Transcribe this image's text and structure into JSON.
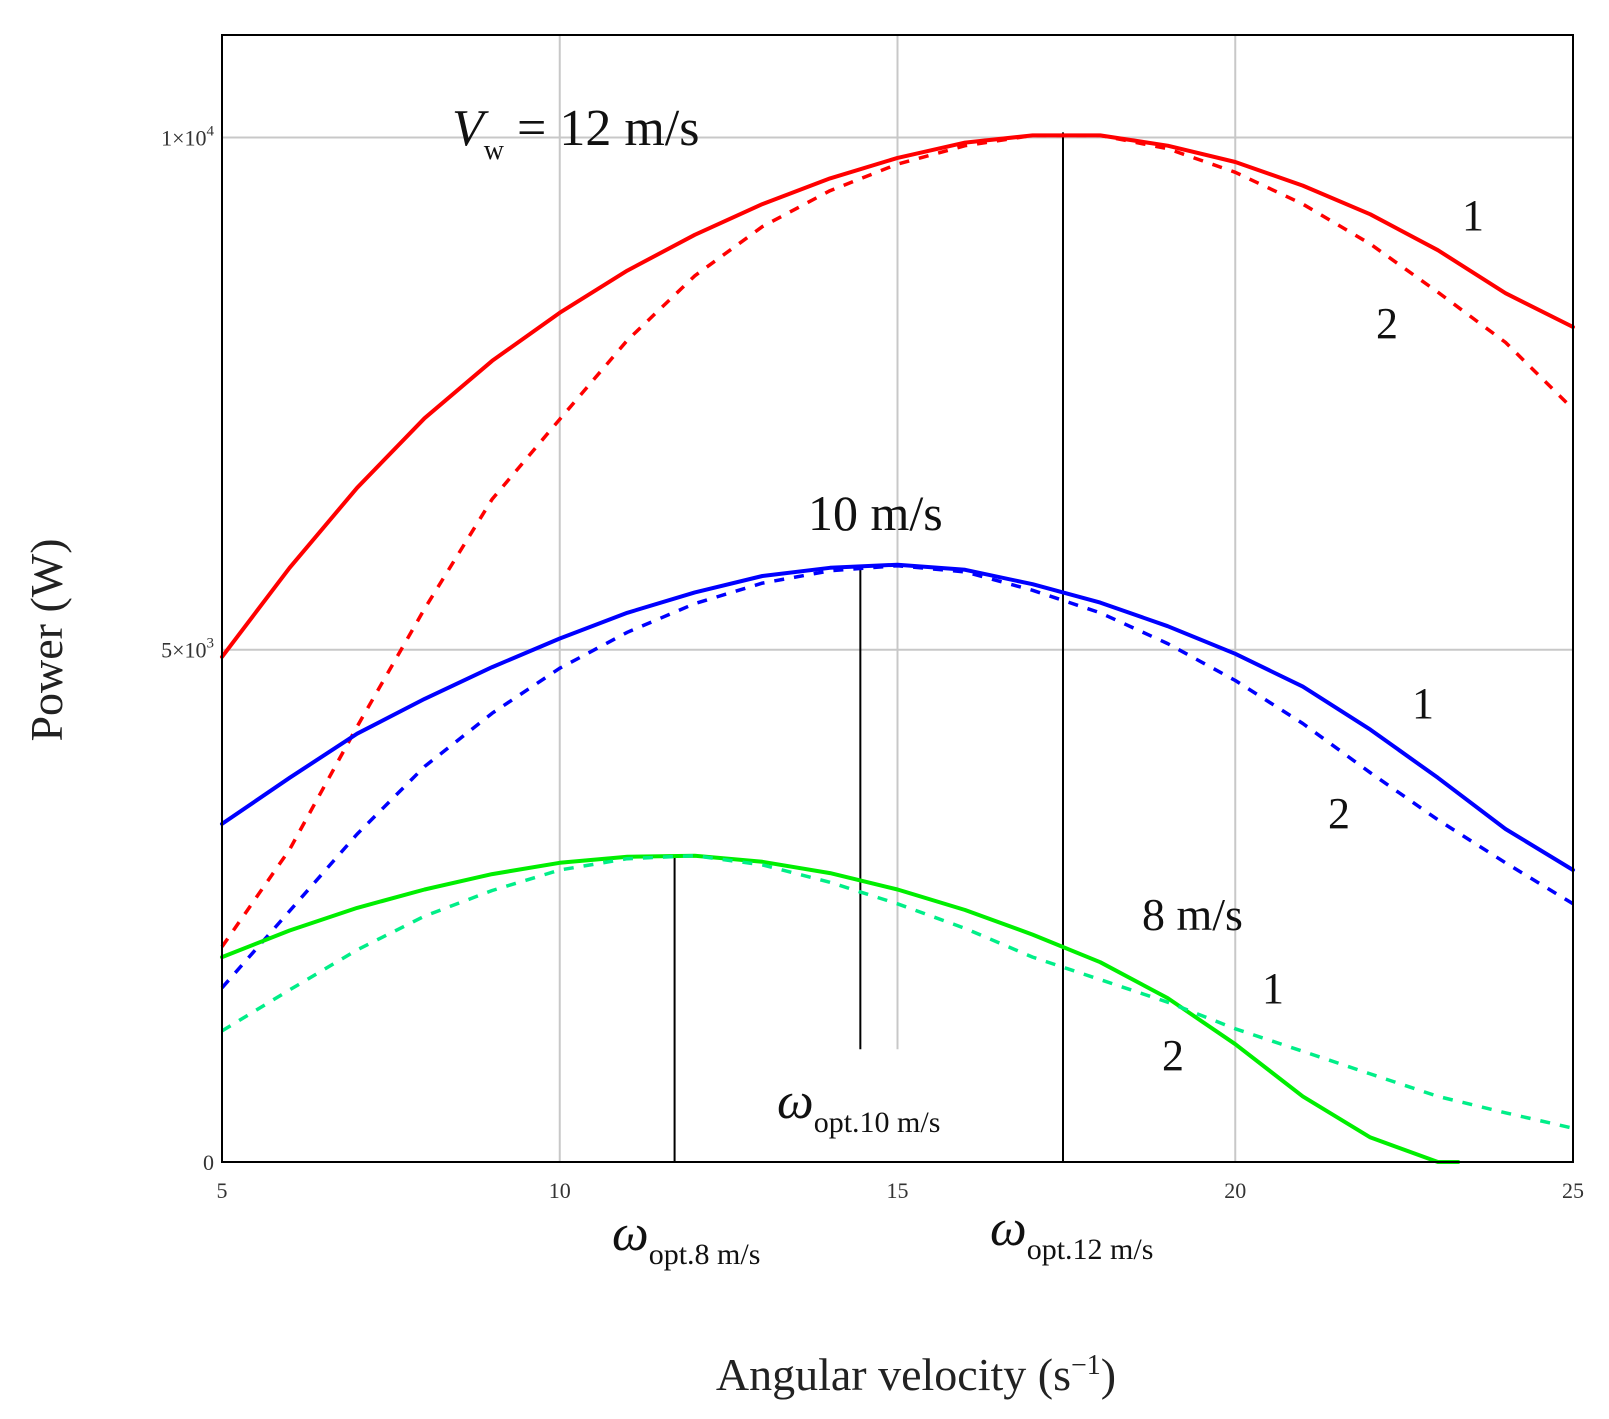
{
  "chart_data": {
    "type": "line",
    "xlabel_text": "Angular velocity (s",
    "xlabel_sup": "−1",
    "xlabel_close": ")",
    "ylabel": "Power (W)",
    "xlim": [
      5,
      25
    ],
    "ylim": [
      0,
      11000
    ],
    "x_ticks": [
      {
        "value": 5,
        "label": "5"
      },
      {
        "value": 10,
        "label": "10"
      },
      {
        "value": 15,
        "label": "15"
      },
      {
        "value": 20,
        "label": "20"
      },
      {
        "value": 25,
        "label": "25"
      }
    ],
    "y_ticks": [
      {
        "value": 0,
        "base": "0",
        "sup": ""
      },
      {
        "value": 5000,
        "base": "5×10",
        "sup": "3"
      },
      {
        "value": 10000,
        "base": "1×10",
        "sup": "4"
      }
    ],
    "series": [
      {
        "name": "12 m/s curve 1",
        "color": "#ff0000",
        "dash": false,
        "x": [
          5,
          6,
          7,
          8,
          9,
          10,
          11,
          12,
          13,
          14,
          15,
          16,
          17,
          18,
          19,
          20,
          21,
          22,
          23,
          24,
          25
        ],
        "y": [
          4930,
          5800,
          6580,
          7260,
          7820,
          8290,
          8700,
          9050,
          9350,
          9600,
          9800,
          9950,
          10020,
          10020,
          9920,
          9760,
          9530,
          9250,
          8900,
          8480,
          8150
        ]
      },
      {
        "name": "12 m/s curve 2",
        "color": "#ff0000",
        "dash": true,
        "x": [
          5,
          6,
          7,
          8,
          9,
          10,
          11,
          12,
          13,
          14,
          15,
          16,
          17,
          18,
          19,
          20,
          21,
          22,
          23,
          24,
          25
        ],
        "y": [
          2100,
          3050,
          4250,
          5400,
          6470,
          7250,
          8020,
          8650,
          9130,
          9480,
          9740,
          9920,
          10020,
          10020,
          9890,
          9660,
          9350,
          8960,
          8490,
          8000,
          7350
        ]
      },
      {
        "name": "10 m/s curve 1",
        "color": "#0000ff",
        "dash": false,
        "x": [
          5,
          6,
          7,
          8,
          9,
          10,
          11,
          12,
          13,
          14,
          15,
          16,
          17,
          18,
          19,
          20,
          21,
          22,
          23,
          24,
          25
        ],
        "y": [
          3300,
          3750,
          4180,
          4520,
          4830,
          5110,
          5360,
          5560,
          5720,
          5800,
          5830,
          5780,
          5640,
          5460,
          5230,
          4960,
          4640,
          4220,
          3750,
          3250,
          2850
        ]
      },
      {
        "name": "10 m/s curve 2",
        "color": "#0000ff",
        "dash": true,
        "x": [
          5,
          6,
          7,
          8,
          9,
          10,
          11,
          12,
          13,
          14,
          15,
          16,
          17,
          18,
          19,
          20,
          21,
          22,
          23,
          24,
          25
        ],
        "y": [
          1700,
          2450,
          3200,
          3860,
          4380,
          4820,
          5170,
          5450,
          5650,
          5770,
          5820,
          5760,
          5580,
          5360,
          5060,
          4700,
          4280,
          3800,
          3340,
          2920,
          2520
        ]
      },
      {
        "name": "8 m/s curve 1",
        "color": "#00ee00",
        "dash": false,
        "x": [
          5,
          6,
          7,
          8,
          9,
          10,
          11,
          12,
          13,
          14,
          15,
          16,
          17,
          18,
          19,
          20,
          21,
          22,
          23,
          23.3
        ],
        "y": [
          2000,
          2260,
          2480,
          2660,
          2810,
          2920,
          2980,
          2990,
          2930,
          2820,
          2660,
          2460,
          2220,
          1950,
          1600,
          1150,
          640,
          240,
          0,
          0
        ]
      },
      {
        "name": "8 m/s curve 2",
        "color": "#00ee88",
        "dash": true,
        "x": [
          5,
          6,
          7,
          8,
          9,
          10,
          11,
          12,
          13,
          14,
          15,
          16,
          17,
          18,
          19,
          20,
          21,
          22,
          23,
          24,
          25
        ],
        "y": [
          1280,
          1680,
          2070,
          2400,
          2650,
          2850,
          2960,
          2990,
          2900,
          2730,
          2520,
          2280,
          2000,
          1780,
          1560,
          1300,
          1080,
          860,
          640,
          480,
          330
        ]
      }
    ],
    "optimal_markers": [
      {
        "name": "opt-8",
        "x": 11.7,
        "y_top": 3000,
        "y_bottom": 0
      },
      {
        "name": "opt-10",
        "x": 14.45,
        "y_top": 5830,
        "y_bottom": 1100
      },
      {
        "name": "opt-12",
        "x": 17.45,
        "y_top": 10050,
        "y_bottom": 0
      }
    ],
    "extra_gridline": {
      "x": 15,
      "y_from": 1100,
      "y_to": 5830
    },
    "gridlines": true,
    "annotations": {
      "vw_main": "V",
      "vw_sub": "w",
      "vw_rest": " = 12 m/s",
      "speed_10": "10 m/s",
      "speed_8": "8 m/s",
      "label_1": "1",
      "label_2": "2",
      "omega": "ω",
      "opt_8_sub": "opt.8 m/s",
      "opt_10_sub": "opt.10 m/s",
      "opt_12_sub": "opt.12 m/s"
    }
  }
}
